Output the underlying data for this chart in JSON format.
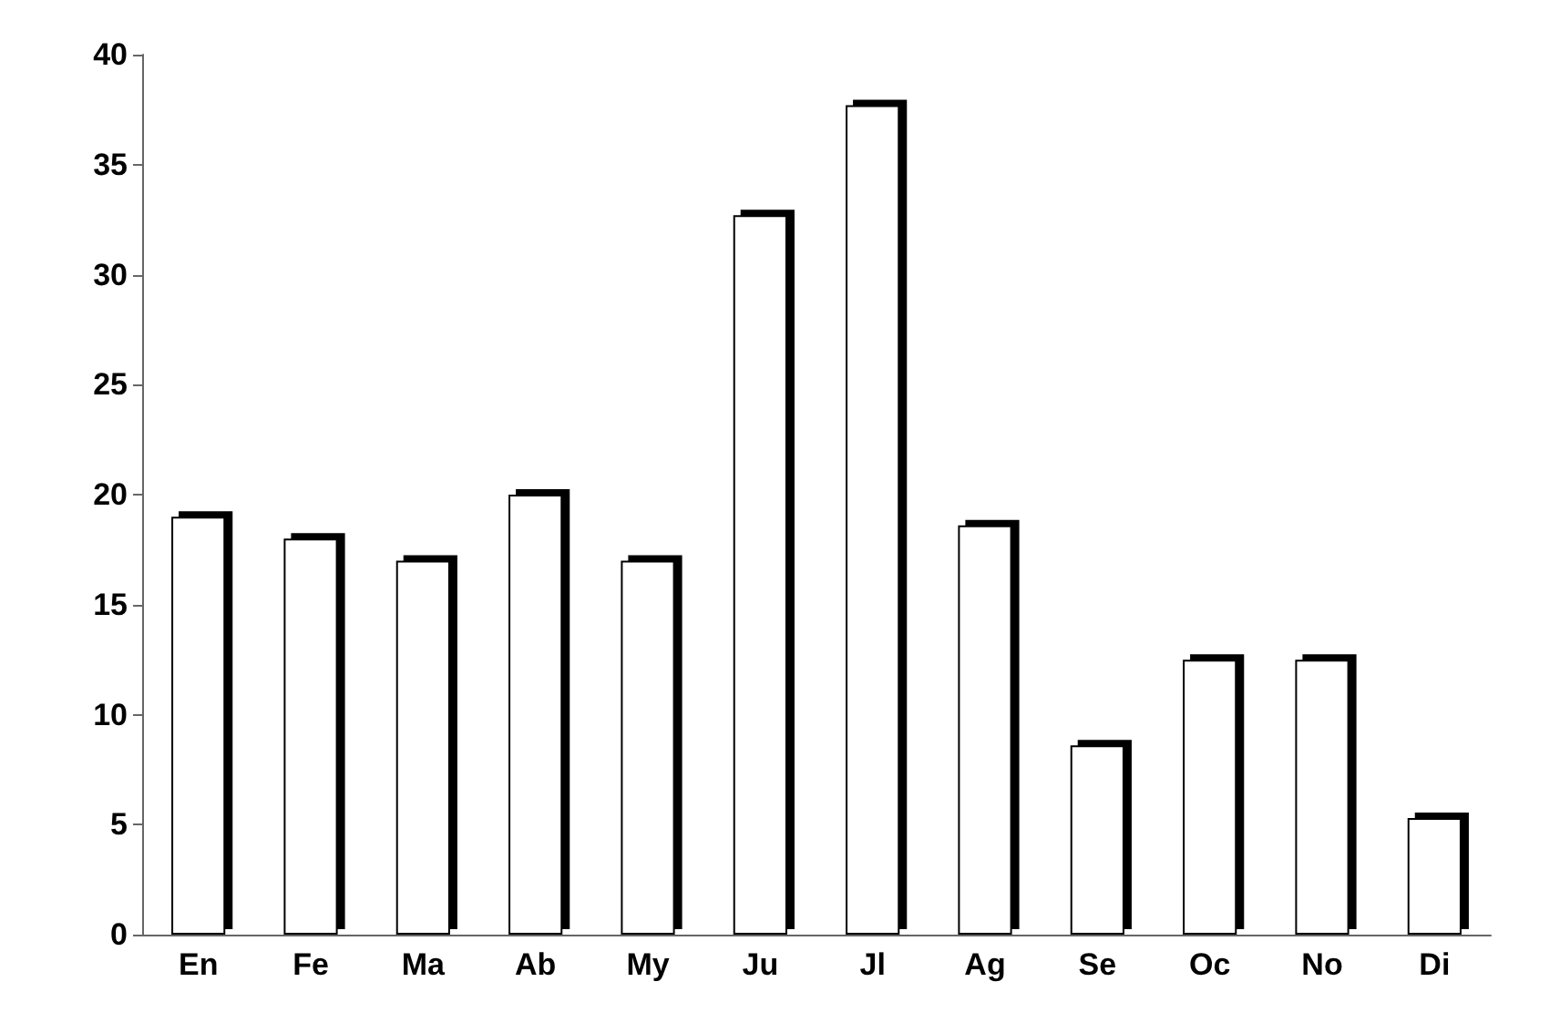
{
  "chart_data": {
    "type": "bar",
    "categories": [
      "En",
      "Fe",
      "Ma",
      "Ab",
      "My",
      "Ju",
      "Jl",
      "Ag",
      "Se",
      "Oc",
      "No",
      "Di"
    ],
    "values": [
      19,
      18,
      17,
      20,
      17,
      32.7,
      37.7,
      18.6,
      8.6,
      12.5,
      12.5,
      5.3
    ],
    "color": "#ffffff",
    "ylim": [
      0,
      40
    ],
    "yticks": [
      0,
      5,
      10,
      15,
      20,
      25,
      30,
      35,
      40
    ],
    "grid": false
  }
}
